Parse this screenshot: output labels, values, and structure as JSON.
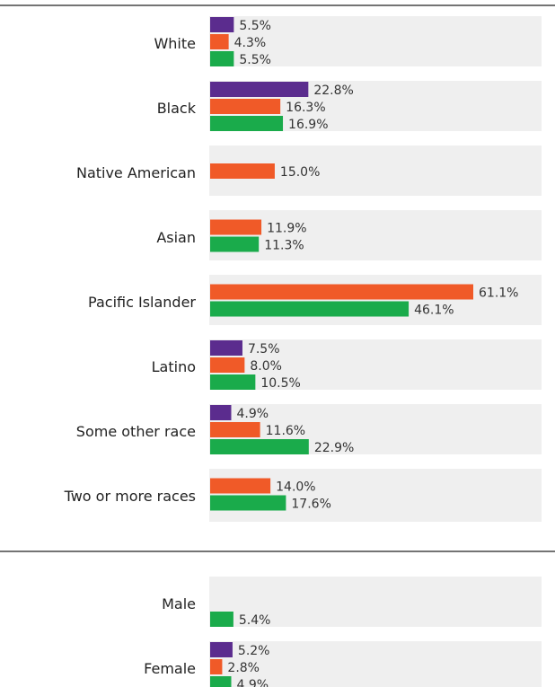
{
  "chart_data": {
    "type": "bar",
    "orientation": "horizontal",
    "value_unit": "%",
    "series_colors": [
      "#5b2c8e",
      "#f05a28",
      "#1aab4b"
    ],
    "groups": [
      {
        "categories": [
          "White",
          "Black",
          "Native American",
          "Asian",
          "Pacific Islander",
          "Latino",
          "Some other race",
          "Two or more races"
        ],
        "values": [
          [
            5.5,
            4.3,
            5.5
          ],
          [
            22.8,
            16.3,
            16.9
          ],
          [
            null,
            15.0,
            null
          ],
          [
            null,
            11.9,
            11.3
          ],
          [
            null,
            61.1,
            46.1
          ],
          [
            7.5,
            8.0,
            10.5
          ],
          [
            4.9,
            11.6,
            22.9
          ],
          [
            null,
            14.0,
            17.6
          ]
        ],
        "labels": [
          [
            "5.5%",
            "4.3%",
            "5.5%"
          ],
          [
            "22.8%",
            "16.3%",
            "16.9%"
          ],
          [
            null,
            "15.0%",
            null
          ],
          [
            null,
            "11.9%",
            "11.3%"
          ],
          [
            null,
            "61.1%",
            "46.1%"
          ],
          [
            "7.5%",
            "8.0%",
            "10.5%"
          ],
          [
            "4.9%",
            "11.6%",
            "22.9%"
          ],
          [
            null,
            "14.0%",
            "17.6%"
          ]
        ]
      },
      {
        "categories": [
          "Male",
          "Female"
        ],
        "values": [
          [
            null,
            null,
            5.4
          ],
          [
            5.2,
            2.8,
            4.9
          ]
        ],
        "labels": [
          [
            null,
            null,
            "5.4%"
          ],
          [
            "5.2%",
            "2.8%",
            "4.9%"
          ]
        ]
      }
    ],
    "grid": false,
    "legend": "none"
  }
}
